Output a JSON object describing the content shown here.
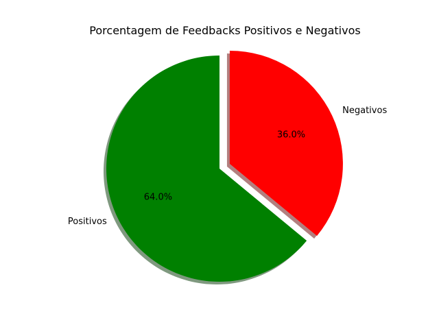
{
  "chart_data": {
    "type": "pie",
    "title": "Porcentagem de Feedbacks Positivos e Negativos",
    "slices": [
      {
        "label": "Positivos",
        "value": 64.0,
        "pct_label": "64.0%",
        "color": "#008000",
        "exploded": false
      },
      {
        "label": "Negativos",
        "value": 36.0,
        "pct_label": "36.0%",
        "color": "#ff0000",
        "exploded": true
      }
    ],
    "shadow": true,
    "legend": "none"
  }
}
